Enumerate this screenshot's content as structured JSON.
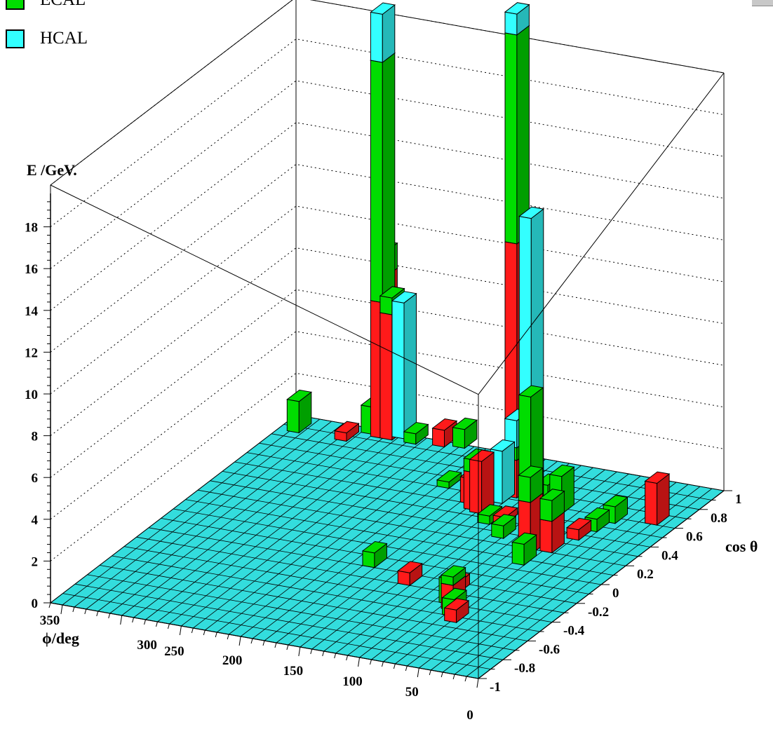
{
  "legend": {
    "items": [
      {
        "label": "ECAL",
        "color": "#00dd00"
      },
      {
        "label": "HCAL",
        "color": "#33ffff"
      }
    ],
    "hidden_third_color": "#ff1a1a"
  },
  "axes": {
    "z_label": "E /GeV.",
    "x_label": "ϕ/deg",
    "y_label": "cos θ",
    "z_ticks": [
      "0",
      "2",
      "4",
      "6",
      "8",
      "10",
      "12",
      "14",
      "16",
      "18"
    ],
    "x_ticks": [
      "350",
      "300",
      "250",
      "200",
      "150",
      "100",
      "50",
      "0"
    ],
    "y_ticks": [
      "-1",
      "-0.8",
      "-0.6",
      "-0.4",
      "-0.2",
      "0",
      "0.2",
      "0.4",
      "0.6",
      "0.8",
      "1"
    ]
  },
  "chart_data": {
    "type": "lego3d",
    "title": "",
    "xlabel": "ϕ/deg",
    "ylabel": "cos θ",
    "zlabel": "E /GeV.",
    "xlim": [
      0,
      360
    ],
    "ylim": [
      -1,
      1
    ],
    "zlim": [
      0,
      20
    ],
    "floor_color": "#33dddd",
    "towers": [
      {
        "phi": 352,
        "cos": 0.85,
        "stack": [
          {
            "c": "ECAL",
            "v": 1.5
          }
        ]
      },
      {
        "phi": 312,
        "cos": 0.85,
        "stack": [
          {
            "c": "RED",
            "v": 0.4
          }
        ]
      },
      {
        "phi": 300,
        "cos": 0.95,
        "stack": [
          {
            "c": "ECAL",
            "v": 1.3
          }
        ]
      },
      {
        "phi": 290,
        "cos": 0.93,
        "stack": [
          {
            "c": "RED",
            "v": 6.5
          },
          {
            "c": "ECAL",
            "v": 11.5
          },
          {
            "c": "HCAL",
            "v": 2.3
          }
        ]
      },
      {
        "phi": 292,
        "cos": 0.97,
        "stack": [
          {
            "c": "RED",
            "v": 7.5
          },
          {
            "c": "ECAL",
            "v": 1.2
          }
        ]
      },
      {
        "phi": 282,
        "cos": 0.93,
        "stack": [
          {
            "c": "RED",
            "v": 6.0
          },
          {
            "c": "ECAL",
            "v": 0.8
          }
        ]
      },
      {
        "phi": 275,
        "cos": 0.96,
        "stack": [
          {
            "c": "HCAL",
            "v": 6.5
          }
        ]
      },
      {
        "phi": 262,
        "cos": 0.93,
        "stack": [
          {
            "c": "ECAL",
            "v": 0.5
          }
        ]
      },
      {
        "phi": 240,
        "cos": 0.95,
        "stack": [
          {
            "c": "RED",
            "v": 0.8
          }
        ]
      },
      {
        "phi": 225,
        "cos": 0.97,
        "stack": [
          {
            "c": "ECAL",
            "v": 0.9
          }
        ]
      },
      {
        "phi": 200,
        "cos": 0.6,
        "stack": [
          {
            "c": "ECAL",
            "v": 0.3
          }
        ]
      },
      {
        "phi": 170,
        "cos": 0.5,
        "stack": [
          {
            "c": "RED",
            "v": 1.2
          }
        ]
      },
      {
        "phi": 162,
        "cos": 0.45,
        "stack": [
          {
            "c": "RED",
            "v": 1.8
          },
          {
            "c": "ECAL",
            "v": 0.6
          }
        ]
      },
      {
        "phi": 155,
        "cos": 0.43,
        "stack": [
          {
            "c": "RED",
            "v": 2.5
          }
        ]
      },
      {
        "phi": 150,
        "cos": 0.55,
        "stack": [
          {
            "c": "HCAL",
            "v": 2.5
          }
        ]
      },
      {
        "phi": 148,
        "cos": 0.65,
        "stack": [
          {
            "c": "RED",
            "v": 12.0
          },
          {
            "c": "ECAL",
            "v": 10.0
          },
          {
            "c": "HCAL",
            "v": 1.0
          }
        ]
      },
      {
        "phi": 145,
        "cos": 0.62,
        "stack": [
          {
            "c": "RED",
            "v": 1.8
          },
          {
            "c": "ECAL",
            "v": 0.6
          },
          {
            "c": "HCAL",
            "v": 1.3
          }
        ]
      },
      {
        "phi": 140,
        "cos": 0.35,
        "stack": [
          {
            "c": "ECAL",
            "v": 0.4
          }
        ]
      },
      {
        "phi": 130,
        "cos": 0.38,
        "stack": [
          {
            "c": "RED",
            "v": 0.3
          }
        ]
      },
      {
        "phi": 122,
        "cos": 0.65,
        "stack": [
          {
            "c": "ECAL",
            "v": 0.7
          }
        ]
      },
      {
        "phi": 118,
        "cos": 0.25,
        "stack": [
          {
            "c": "ECAL",
            "v": 0.6
          }
        ]
      },
      {
        "phi": 105,
        "cos": 0.35,
        "stack": [
          {
            "c": "HCAL",
            "v": 15.0
          }
        ]
      },
      {
        "phi": 100,
        "cos": 0.55,
        "stack": [
          {
            "c": "ECAL",
            "v": 1.8
          }
        ]
      },
      {
        "phi": 95,
        "cos": 0.25,
        "stack": [
          {
            "c": "RED",
            "v": 3.0
          },
          {
            "c": "ECAL",
            "v": 4.0
          }
        ]
      },
      {
        "phi": 85,
        "cos": 0.15,
        "stack": [
          {
            "c": "RED",
            "v": 2.5
          },
          {
            "c": "ECAL",
            "v": 1.2
          }
        ]
      },
      {
        "phi": 80,
        "cos": 0.05,
        "stack": [
          {
            "c": "ECAL",
            "v": 1.0
          }
        ]
      },
      {
        "phi": 72,
        "cos": 0.2,
        "stack": [
          {
            "c": "RED",
            "v": 1.5
          },
          {
            "c": "ECAL",
            "v": 1.0
          }
        ]
      },
      {
        "phi": 65,
        "cos": 0.35,
        "stack": [
          {
            "c": "RED",
            "v": 0.5
          }
        ]
      },
      {
        "phi": 60,
        "cos": 0.45,
        "stack": [
          {
            "c": "ECAL",
            "v": 0.6
          }
        ]
      },
      {
        "phi": 55,
        "cos": 0.55,
        "stack": [
          {
            "c": "ECAL",
            "v": 0.8
          }
        ]
      },
      {
        "phi": 100,
        "cos": -0.3,
        "stack": [
          {
            "c": "RED",
            "v": 0.5
          }
        ]
      },
      {
        "phi": 95,
        "cos": -0.4,
        "stack": [
          {
            "c": "ECAL",
            "v": 1.2
          }
        ]
      },
      {
        "phi": 88,
        "cos": -0.45,
        "stack": [
          {
            "c": "RED",
            "v": 1.2
          },
          {
            "c": "ECAL",
            "v": 0.4
          }
        ]
      },
      {
        "phi": 82,
        "cos": -0.5,
        "stack": [
          {
            "c": "ECAL",
            "v": 0.8
          }
        ]
      },
      {
        "phi": 75,
        "cos": -0.55,
        "stack": [
          {
            "c": "RED",
            "v": 0.6
          }
        ]
      },
      {
        "phi": 25,
        "cos": 0.6,
        "stack": [
          {
            "c": "RED",
            "v": 2.0
          }
        ]
      },
      {
        "phi": 180,
        "cos": -0.2,
        "stack": [
          {
            "c": "ECAL",
            "v": 0.7
          }
        ]
      },
      {
        "phi": 140,
        "cos": -0.3,
        "stack": [
          {
            "c": "RED",
            "v": 0.6
          }
        ]
      }
    ]
  }
}
